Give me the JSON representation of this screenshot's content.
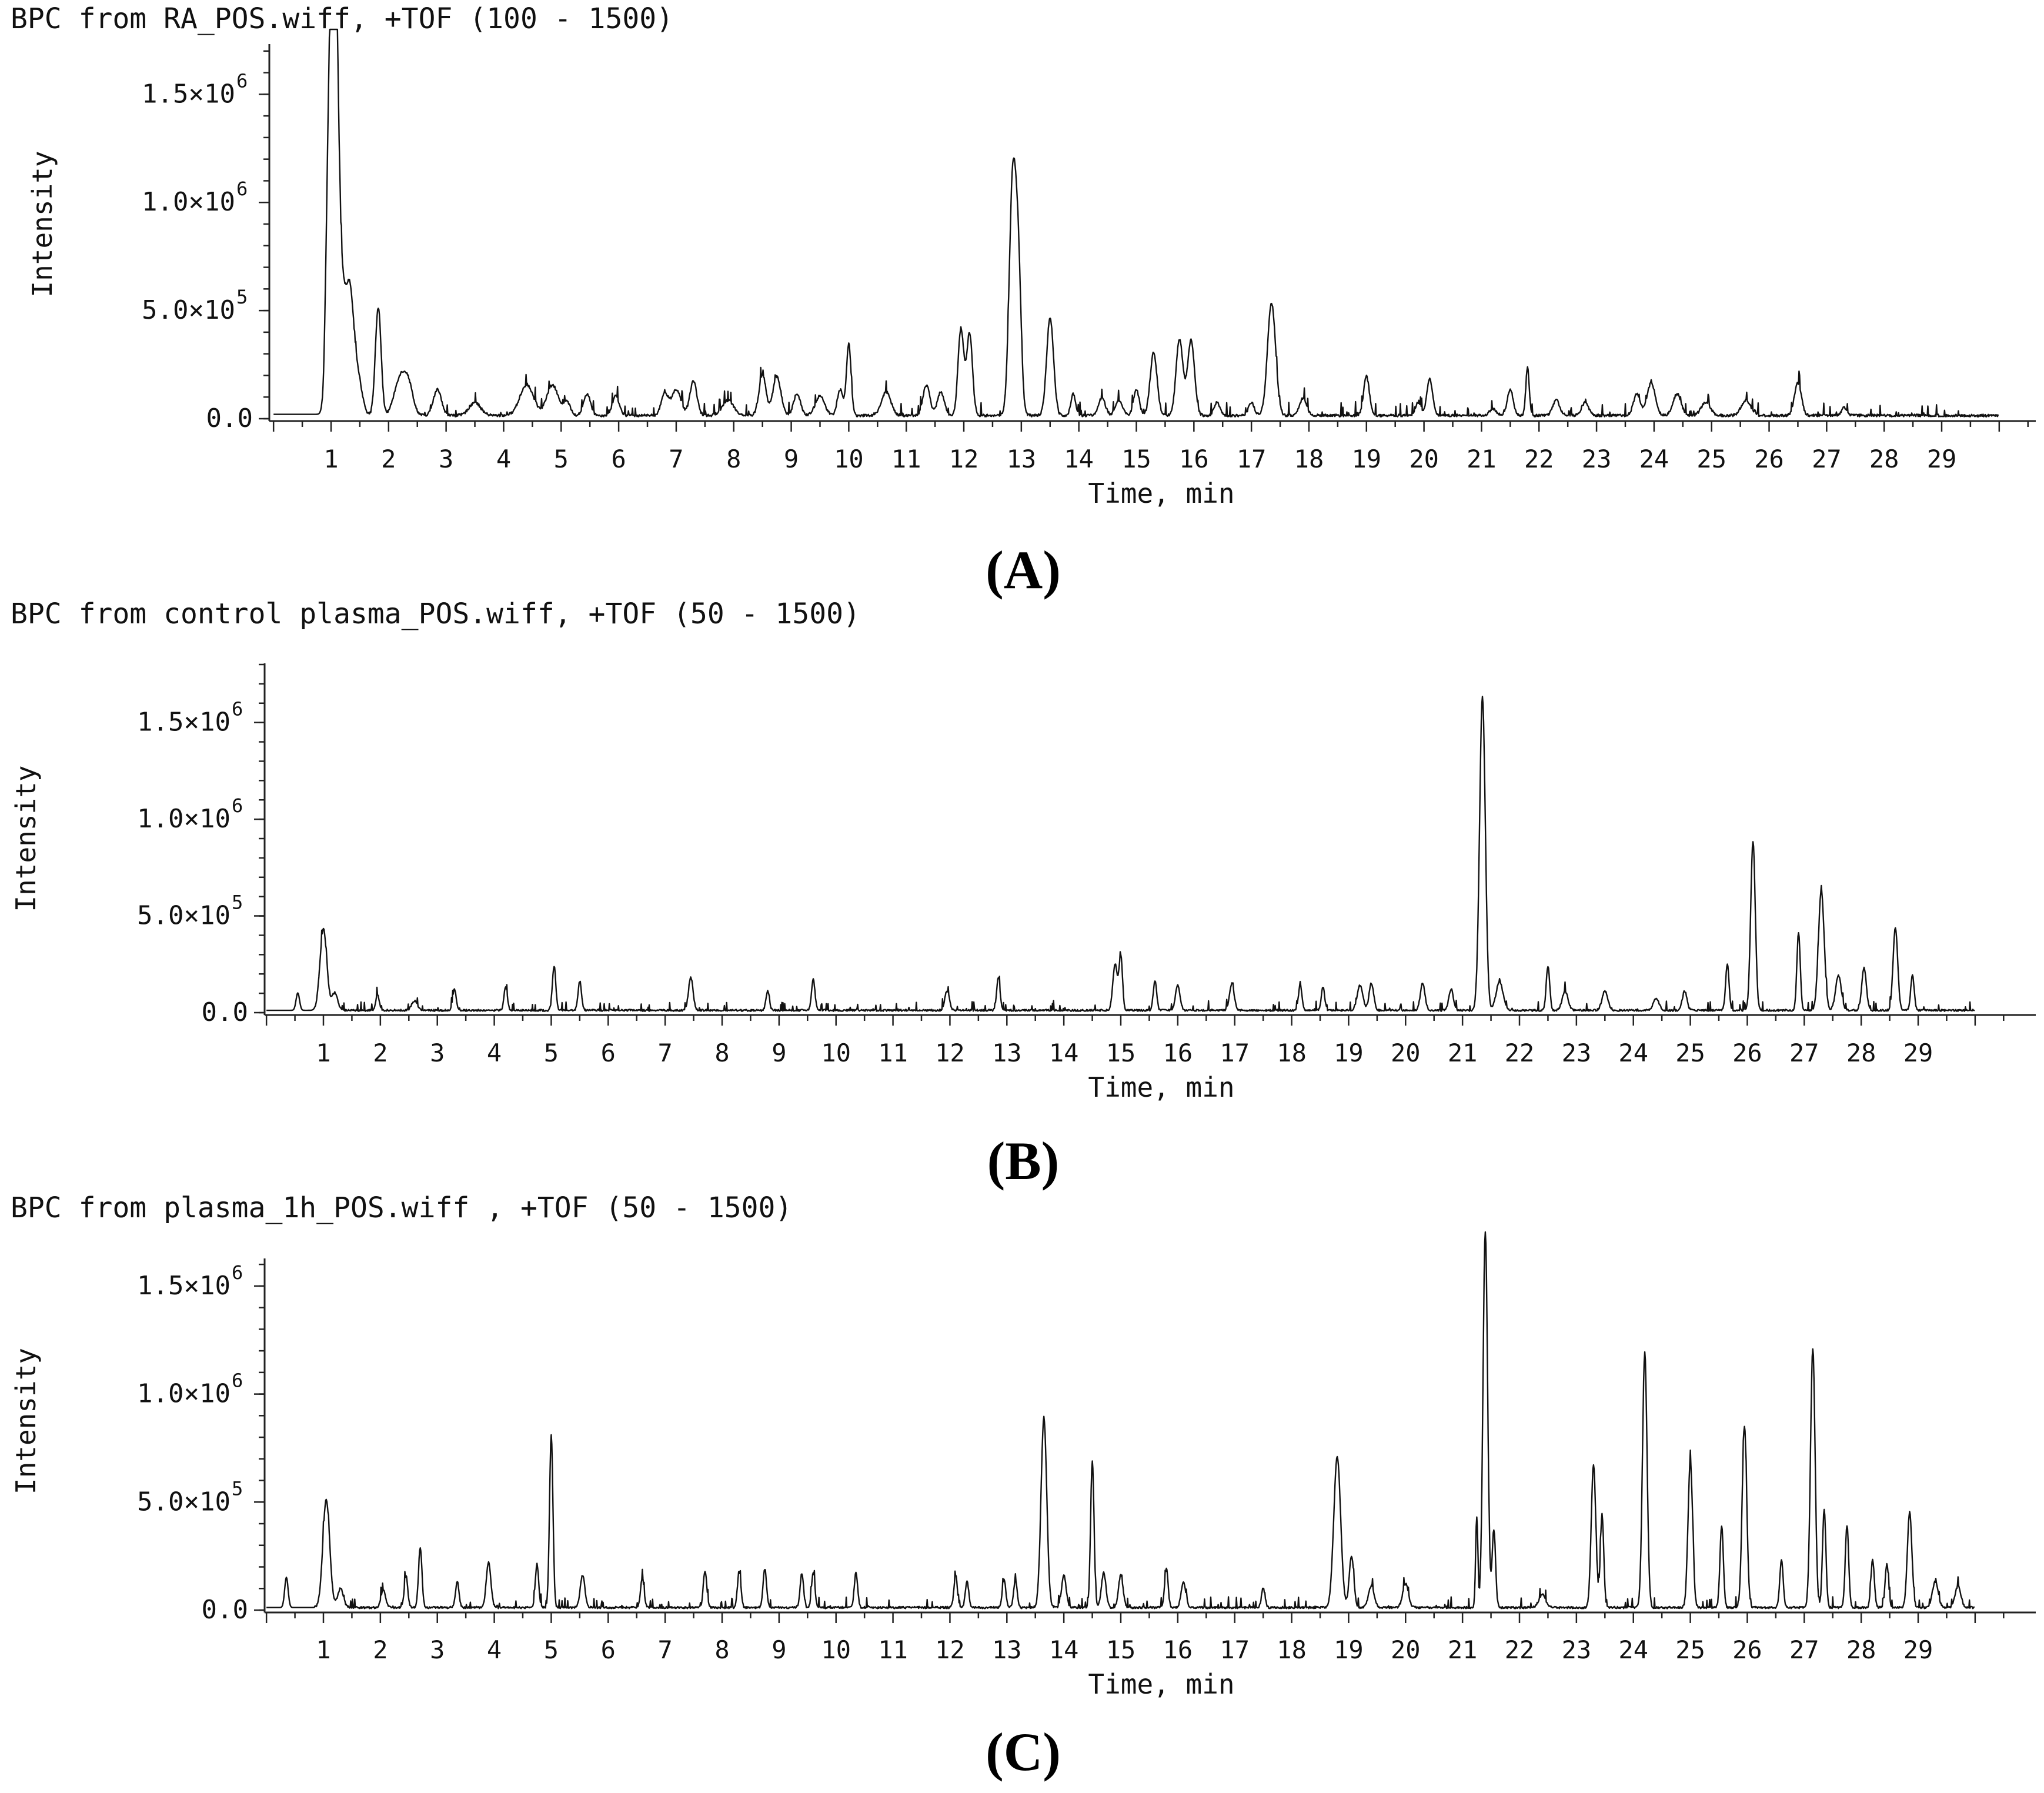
{
  "chart_data": [
    {
      "type": "line",
      "panel_label": "(A)",
      "title": "BPC from RA_POS.wiff, +TOF (100 - 1500)",
      "xlabel": "Time, min",
      "ylabel": "Intensity",
      "xlim": [
        0,
        30
      ],
      "ylim": [
        0,
        1800000
      ],
      "x_ticks": [
        "1",
        "2",
        "3",
        "4",
        "5",
        "6",
        "7",
        "8",
        "9",
        "10",
        "11",
        "12",
        "13",
        "14",
        "15",
        "16",
        "17",
        "18",
        "19",
        "20",
        "21",
        "22",
        "23",
        "24",
        "25",
        "26",
        "27",
        "28",
        "29"
      ],
      "y_ticks": [
        {
          "value": 0,
          "label": "0.0",
          "exp": ""
        },
        {
          "value": 500000,
          "label": "5.0×10",
          "exp": "5"
        },
        {
          "value": 1000000,
          "label": "1.0×10",
          "exp": "6"
        },
        {
          "value": 1500000,
          "label": "1.5×10",
          "exp": "6"
        }
      ],
      "baseline": 15000,
      "start_level": 20000,
      "x_start": 0.0,
      "peaks": [
        [
          0.92,
          160000,
          0.03
        ],
        [
          1.0,
          1780000,
          0.06
        ],
        [
          1.08,
          1300000,
          0.05
        ],
        [
          1.18,
          600000,
          0.08
        ],
        [
          1.33,
          450000,
          0.06
        ],
        [
          1.45,
          200000,
          0.08
        ],
        [
          1.82,
          500000,
          0.05
        ],
        [
          2.2,
          170000,
          0.1
        ],
        [
          2.35,
          120000,
          0.08
        ],
        [
          2.85,
          120000,
          0.07
        ],
        [
          3.5,
          60000,
          0.1
        ],
        [
          4.4,
          140000,
          0.12
        ],
        [
          4.85,
          140000,
          0.1
        ],
        [
          5.1,
          60000,
          0.06
        ],
        [
          5.45,
          100000,
          0.06
        ],
        [
          5.95,
          90000,
          0.06
        ],
        [
          6.8,
          100000,
          0.06
        ],
        [
          7.0,
          120000,
          0.08
        ],
        [
          7.3,
          160000,
          0.06
        ],
        [
          7.9,
          70000,
          0.1
        ],
        [
          8.5,
          190000,
          0.06
        ],
        [
          8.75,
          180000,
          0.07
        ],
        [
          9.1,
          100000,
          0.06
        ],
        [
          9.5,
          90000,
          0.08
        ],
        [
          9.85,
          120000,
          0.05
        ],
        [
          10.0,
          330000,
          0.04
        ],
        [
          10.65,
          110000,
          0.08
        ],
        [
          11.35,
          140000,
          0.06
        ],
        [
          11.6,
          110000,
          0.06
        ],
        [
          11.95,
          400000,
          0.05
        ],
        [
          12.1,
          380000,
          0.05
        ],
        [
          12.85,
          1080000,
          0.06
        ],
        [
          12.95,
          600000,
          0.05
        ],
        [
          13.5,
          450000,
          0.06
        ],
        [
          13.9,
          100000,
          0.04
        ],
        [
          14.4,
          80000,
          0.06
        ],
        [
          14.7,
          70000,
          0.06
        ],
        [
          15.0,
          120000,
          0.05
        ],
        [
          15.3,
          290000,
          0.06
        ],
        [
          15.75,
          350000,
          0.06
        ],
        [
          15.95,
          350000,
          0.06
        ],
        [
          16.4,
          60000,
          0.05
        ],
        [
          17.0,
          60000,
          0.05
        ],
        [
          17.35,
          520000,
          0.07
        ],
        [
          17.9,
          80000,
          0.06
        ],
        [
          19.0,
          180000,
          0.05
        ],
        [
          19.9,
          60000,
          0.05
        ],
        [
          20.1,
          170000,
          0.05
        ],
        [
          21.2,
          30000,
          0.06
        ],
        [
          21.5,
          120000,
          0.05
        ],
        [
          21.8,
          220000,
          0.03
        ],
        [
          22.3,
          70000,
          0.06
        ],
        [
          22.8,
          60000,
          0.06
        ],
        [
          23.7,
          100000,
          0.06
        ],
        [
          23.95,
          150000,
          0.07
        ],
        [
          24.4,
          100000,
          0.07
        ],
        [
          24.9,
          60000,
          0.08
        ],
        [
          25.6,
          70000,
          0.08
        ],
        [
          26.5,
          150000,
          0.06
        ],
        [
          27.3,
          40000,
          0.04
        ]
      ]
    },
    {
      "type": "line",
      "panel_label": "(B)",
      "title": "BPC from control plasma_POS.wiff, +TOF (50 - 1500)",
      "xlabel": "Time, min",
      "ylabel": "Intensity",
      "xlim": [
        0,
        29.9
      ],
      "ylim": [
        0,
        1800000
      ],
      "x_ticks": [
        "1",
        "2",
        "3",
        "4",
        "5",
        "6",
        "7",
        "8",
        "9",
        "10",
        "11",
        "12",
        "13",
        "14",
        "15",
        "16",
        "17",
        "18",
        "19",
        "20",
        "21",
        "22",
        "23",
        "24",
        "25",
        "26",
        "27",
        "28",
        "29"
      ],
      "y_ticks": [
        {
          "value": 0,
          "label": "0.0",
          "exp": ""
        },
        {
          "value": 500000,
          "label": "5.0×10",
          "exp": "5"
        },
        {
          "value": 1000000,
          "label": "1.0×10",
          "exp": "6"
        },
        {
          "value": 1500000,
          "label": "1.5×10",
          "exp": "6"
        }
      ],
      "baseline": 12000,
      "start_level": 12000,
      "x_start": 0.0,
      "peaks": [
        [
          0.55,
          90000,
          0.03
        ],
        [
          1.0,
          420000,
          0.06
        ],
        [
          1.2,
          90000,
          0.05
        ],
        [
          1.95,
          80000,
          0.03
        ],
        [
          2.6,
          50000,
          0.05
        ],
        [
          3.3,
          110000,
          0.03
        ],
        [
          4.2,
          120000,
          0.03
        ],
        [
          5.05,
          230000,
          0.03
        ],
        [
          5.5,
          150000,
          0.03
        ],
        [
          7.45,
          170000,
          0.04
        ],
        [
          8.8,
          100000,
          0.03
        ],
        [
          9.6,
          160000,
          0.03
        ],
        [
          11.95,
          100000,
          0.04
        ],
        [
          12.85,
          170000,
          0.03
        ],
        [
          14.9,
          240000,
          0.04
        ],
        [
          15.0,
          280000,
          0.03
        ],
        [
          15.6,
          150000,
          0.03
        ],
        [
          16.0,
          130000,
          0.04
        ],
        [
          16.95,
          140000,
          0.04
        ],
        [
          18.15,
          130000,
          0.03
        ],
        [
          18.55,
          120000,
          0.03
        ],
        [
          19.2,
          130000,
          0.05
        ],
        [
          19.4,
          140000,
          0.04
        ],
        [
          20.3,
          140000,
          0.04
        ],
        [
          20.8,
          110000,
          0.04
        ],
        [
          21.35,
          1620000,
          0.05
        ],
        [
          21.65,
          150000,
          0.06
        ],
        [
          22.5,
          230000,
          0.03
        ],
        [
          22.8,
          100000,
          0.05
        ],
        [
          23.5,
          100000,
          0.05
        ],
        [
          24.4,
          60000,
          0.05
        ],
        [
          24.9,
          100000,
          0.04
        ],
        [
          25.65,
          240000,
          0.03
        ],
        [
          26.1,
          870000,
          0.04
        ],
        [
          26.9,
          400000,
          0.03
        ],
        [
          27.3,
          620000,
          0.05
        ],
        [
          27.6,
          180000,
          0.05
        ],
        [
          28.05,
          220000,
          0.04
        ],
        [
          28.6,
          430000,
          0.04
        ],
        [
          28.9,
          180000,
          0.03
        ]
      ]
    },
    {
      "type": "line",
      "panel_label": "(C)",
      "title": "BPC from plasma_1h_POS.wiff , +TOF (50 - 1500)",
      "xlabel": "Time, min",
      "ylabel": "Intensity",
      "xlim": [
        0,
        29.9
      ],
      "ylim": [
        0,
        1750000
      ],
      "x_ticks": [
        "1",
        "2",
        "3",
        "4",
        "5",
        "6",
        "7",
        "8",
        "9",
        "10",
        "11",
        "12",
        "13",
        "14",
        "15",
        "16",
        "17",
        "18",
        "19",
        "20",
        "21",
        "22",
        "23",
        "24",
        "25",
        "26",
        "27",
        "28",
        "29"
      ],
      "y_ticks": [
        {
          "value": 0,
          "label": "0.0",
          "exp": ""
        },
        {
          "value": 500000,
          "label": "5.0×10",
          "exp": "5"
        },
        {
          "value": 1000000,
          "label": "1.0×10",
          "exp": "6"
        },
        {
          "value": 1500000,
          "label": "1.5×10",
          "exp": "6"
        }
      ],
      "baseline": 12000,
      "start_level": 12000,
      "x_start": 0.0,
      "peaks": [
        [
          0.35,
          140000,
          0.03
        ],
        [
          1.05,
          500000,
          0.06
        ],
        [
          1.3,
          90000,
          0.05
        ],
        [
          2.05,
          80000,
          0.04
        ],
        [
          2.45,
          150000,
          0.03
        ],
        [
          2.7,
          280000,
          0.03
        ],
        [
          3.35,
          120000,
          0.03
        ],
        [
          3.9,
          210000,
          0.04
        ],
        [
          4.75,
          200000,
          0.03
        ],
        [
          5.0,
          800000,
          0.03
        ],
        [
          5.55,
          150000,
          0.04
        ],
        [
          6.6,
          140000,
          0.03
        ],
        [
          7.7,
          170000,
          0.03
        ],
        [
          8.3,
          170000,
          0.03
        ],
        [
          8.75,
          180000,
          0.03
        ],
        [
          9.4,
          160000,
          0.03
        ],
        [
          9.6,
          160000,
          0.03
        ],
        [
          10.35,
          160000,
          0.03
        ],
        [
          12.1,
          150000,
          0.03
        ],
        [
          12.3,
          120000,
          0.03
        ],
        [
          12.95,
          130000,
          0.03
        ],
        [
          13.15,
          130000,
          0.03
        ],
        [
          13.65,
          880000,
          0.05
        ],
        [
          14.0,
          150000,
          0.04
        ],
        [
          14.5,
          680000,
          0.03
        ],
        [
          14.7,
          160000,
          0.04
        ],
        [
          15.0,
          150000,
          0.04
        ],
        [
          15.8,
          180000,
          0.03
        ],
        [
          16.1,
          120000,
          0.04
        ],
        [
          17.5,
          90000,
          0.03
        ],
        [
          18.8,
          700000,
          0.06
        ],
        [
          19.05,
          240000,
          0.04
        ],
        [
          19.4,
          100000,
          0.05
        ],
        [
          20.0,
          110000,
          0.05
        ],
        [
          21.25,
          420000,
          0.02
        ],
        [
          21.4,
          1740000,
          0.04
        ],
        [
          21.55,
          360000,
          0.03
        ],
        [
          22.4,
          60000,
          0.06
        ],
        [
          23.3,
          660000,
          0.04
        ],
        [
          23.45,
          430000,
          0.03
        ],
        [
          24.2,
          1180000,
          0.04
        ],
        [
          25.0,
          680000,
          0.04
        ],
        [
          25.55,
          380000,
          0.03
        ],
        [
          25.95,
          840000,
          0.04
        ],
        [
          26.6,
          220000,
          0.03
        ],
        [
          27.15,
          1200000,
          0.04
        ],
        [
          27.35,
          450000,
          0.03
        ],
        [
          27.75,
          380000,
          0.03
        ],
        [
          28.2,
          220000,
          0.03
        ],
        [
          28.45,
          200000,
          0.03
        ],
        [
          28.85,
          440000,
          0.04
        ],
        [
          29.3,
          120000,
          0.05
        ],
        [
          29.7,
          100000,
          0.05
        ]
      ]
    }
  ]
}
